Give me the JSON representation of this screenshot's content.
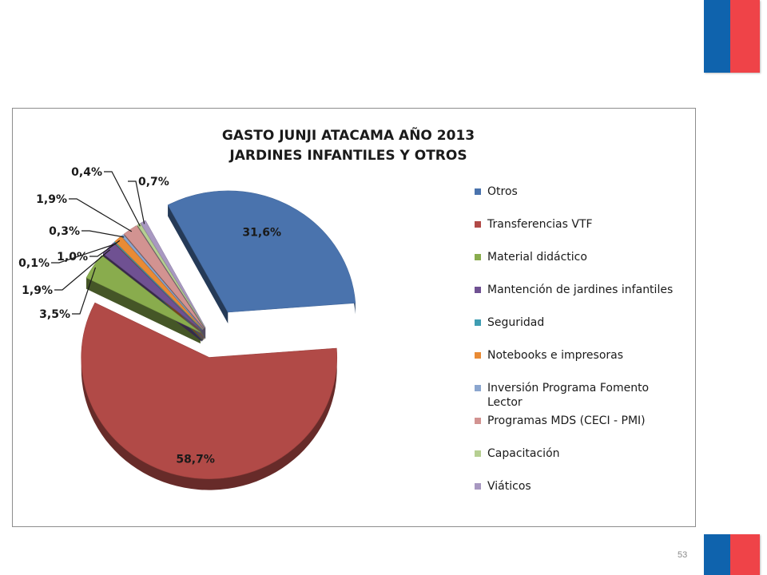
{
  "slide": {
    "page_number": "53"
  },
  "flag_colors": {
    "blue": "#0f63ad",
    "red": "#ef4348"
  },
  "chart_data": {
    "type": "pie",
    "title_lines": [
      "GASTO JUNJI ATACAMA AÑO 2013",
      "JARDINES INFANTILES Y OTROS"
    ],
    "legend_position": "right",
    "style": "3d-exploded",
    "slices": [
      {
        "name": "Otros",
        "value": 31.6,
        "label": "31,6%",
        "color": "#4a73ad"
      },
      {
        "name": "Transferencias VTF",
        "value": 58.7,
        "label": "58,7%",
        "color": "#b14a47"
      },
      {
        "name": "Material didáctico",
        "value": 3.5,
        "label": "3,5%",
        "color": "#89ac4d"
      },
      {
        "name": "Mantención de jardines infantiles",
        "value": 1.9,
        "label": "1,9%",
        "color": "#6f5192"
      },
      {
        "name": "Seguridad",
        "value": 0.1,
        "label": "0,1%",
        "color": "#3f9db2"
      },
      {
        "name": "Notebooks e impresoras",
        "value": 1.0,
        "label": "1,0%",
        "color": "#e98b35"
      },
      {
        "name": "Inversión Programa Fomento Lector",
        "value": 0.3,
        "label": "0,3%",
        "color": "#8ba6cf"
      },
      {
        "name": "Programas MDS (CECI - PMI)",
        "value": 1.9,
        "label": "1,9%",
        "color": "#d29391"
      },
      {
        "name": "Capacitación",
        "value": 0.4,
        "label": "0,4%",
        "color": "#b6cf92"
      },
      {
        "name": "Viáticos",
        "value": 0.7,
        "label": "0,7%",
        "color": "#a898c1"
      }
    ]
  }
}
